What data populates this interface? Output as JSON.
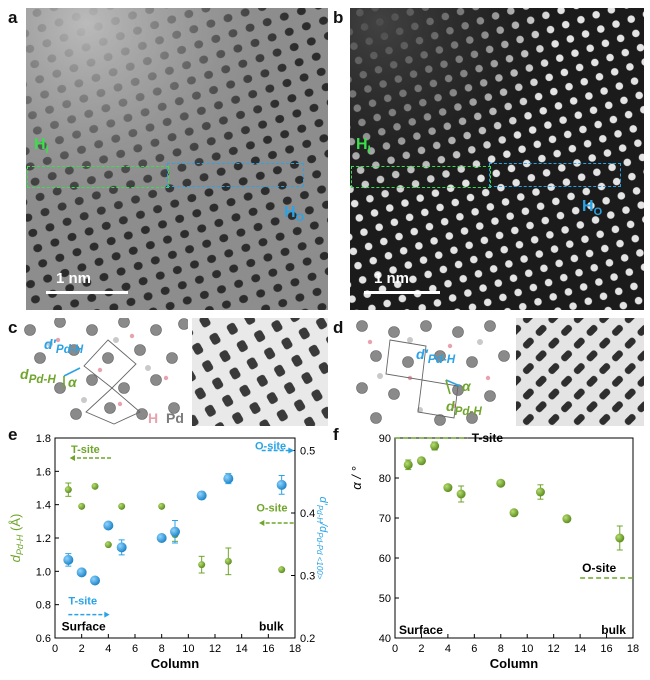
{
  "panels": {
    "a": "a",
    "b": "b",
    "c": "c",
    "d": "d",
    "e": "e",
    "f": "f"
  },
  "micrograph": {
    "h_i": "H",
    "h_i_sub": "I",
    "h_o": "H",
    "h_o_sub": "O",
    "scale_label": "1 nm"
  },
  "model_c": {
    "d_prime": "d′",
    "d_prime_sub": "Pd-H",
    "d": "d",
    "d_sub": "Pd-H",
    "alpha": "α",
    "legend_h": "H",
    "legend_pd": "Pd"
  },
  "model_d": {
    "d_prime": "d′",
    "d_prime_sub": "Pd-H",
    "d": "d",
    "d_sub": "Pd-H",
    "alpha": "α"
  },
  "colors": {
    "green": "#6fa52b",
    "blue": "#2aa3e6",
    "pd_atom": "#8a8a8a",
    "h_atom": "#e6a3ad"
  },
  "chart_data": [
    {
      "type": "scatter",
      "panel": "e",
      "xlabel": "Column",
      "ylabel_left": "d",
      "ylabel_left_sub": "Pd-H",
      "ylabel_left_unit": "(Å)",
      "ylabel_right": "d′",
      "ylabel_right_sub": "Pd-H",
      "ylabel_right_mid": "/d",
      "ylabel_right_sub2": "Pd-Pd <100>",
      "xlim": [
        0,
        18
      ],
      "xticks": [
        "0",
        "2",
        "4",
        "6",
        "8",
        "10",
        "12",
        "14",
        "16",
        "18"
      ],
      "ylim_left": [
        0.6,
        1.8
      ],
      "yticks_left": [
        "0.6",
        "0.8",
        "1.0",
        "1.2",
        "1.4",
        "1.6",
        "1.8"
      ],
      "ylim_right": [
        0.2,
        0.52
      ],
      "yticks_right": [
        "0.2",
        "0.3",
        "0.4",
        "0.5"
      ],
      "series": [
        {
          "axis": "left",
          "color": "#6fa52b",
          "points": [
            {
              "x": 1,
              "y": 1.49,
              "err": 0.04
            },
            {
              "x": 2,
              "y": 1.39,
              "err": 0.0
            },
            {
              "x": 3,
              "y": 1.51,
              "err": 0.0
            },
            {
              "x": 4,
              "y": 1.16,
              "err": 0.0
            },
            {
              "x": 5,
              "y": 1.39,
              "err": 0.0
            },
            {
              "x": 8,
              "y": 1.39,
              "err": 0.0
            },
            {
              "x": 9,
              "y": 1.22,
              "err": 0.04
            },
            {
              "x": 11,
              "y": 1.04,
              "err": 0.05
            },
            {
              "x": 13,
              "y": 1.06,
              "err": 0.08
            },
            {
              "x": 17,
              "y": 1.01,
              "err": 0.0
            }
          ]
        },
        {
          "axis": "right",
          "color": "#2aa3e6",
          "points": [
            {
              "x": 1,
              "y": 0.325,
              "err": 0.01
            },
            {
              "x": 2,
              "y": 0.305,
              "err": 0.0
            },
            {
              "x": 3,
              "y": 0.292,
              "err": 0.0
            },
            {
              "x": 4,
              "y": 0.38,
              "err": 0.0
            },
            {
              "x": 5,
              "y": 0.345,
              "err": 0.012
            },
            {
              "x": 8,
              "y": 0.36,
              "err": 0.0
            },
            {
              "x": 9,
              "y": 0.37,
              "err": 0.018
            },
            {
              "x": 11,
              "y": 0.428,
              "err": 0.006
            },
            {
              "x": 13,
              "y": 0.455,
              "err": 0.008
            },
            {
              "x": 17,
              "y": 0.445,
              "err": 0.015
            }
          ]
        }
      ],
      "annotations": {
        "t_site_top": "T-site",
        "o_site_top": "O-site",
        "o_site_mid": "O-site",
        "t_site_bottom": "T-site",
        "surface": "Surface",
        "bulk": "bulk"
      }
    },
    {
      "type": "scatter",
      "panel": "f",
      "xlabel": "Column",
      "ylabel": "α / °",
      "xlim": [
        0,
        18
      ],
      "xticks": [
        "0",
        "2",
        "4",
        "6",
        "8",
        "10",
        "12",
        "14",
        "16",
        "18"
      ],
      "ylim": [
        40,
        90
      ],
      "yticks": [
        "40",
        "50",
        "60",
        "70",
        "80",
        "90"
      ],
      "series": [
        {
          "color": "#6fa52b",
          "points": [
            {
              "x": 1,
              "y": 83.3,
              "err": 1.2
            },
            {
              "x": 2,
              "y": 84.3,
              "err": 0.6
            },
            {
              "x": 3,
              "y": 88.0,
              "err": 1.0
            },
            {
              "x": 4,
              "y": 77.6,
              "err": 0.4
            },
            {
              "x": 5,
              "y": 76.0,
              "err": 2.0
            },
            {
              "x": 8,
              "y": 78.7,
              "err": 0.4
            },
            {
              "x": 9,
              "y": 71.3,
              "err": 0.4
            },
            {
              "x": 11,
              "y": 76.5,
              "err": 1.8
            },
            {
              "x": 13,
              "y": 69.8,
              "err": 0.4
            },
            {
              "x": 17,
              "y": 65.0,
              "err": 3.0
            }
          ]
        }
      ],
      "reference_lines": [
        {
          "label": "T-site",
          "y": 90,
          "x_from": 0,
          "x_to": 5.5
        },
        {
          "label": "O-site",
          "y": 55,
          "x_from": 14,
          "x_to": 18
        }
      ],
      "annotations": {
        "surface": "Surface",
        "bulk": "bulk"
      }
    }
  ]
}
